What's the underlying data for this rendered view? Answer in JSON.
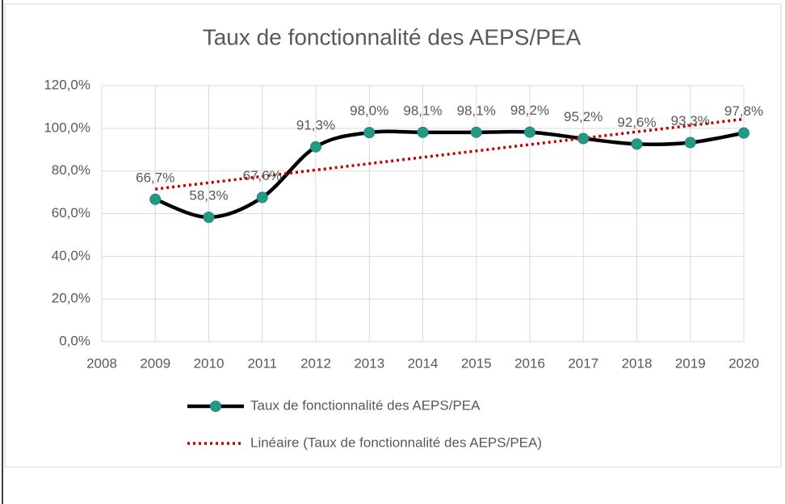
{
  "chart_data": {
    "type": "line",
    "title": "Taux de fonctionnalité des AEPS/PEA",
    "x": [
      2009,
      2010,
      2011,
      2012,
      2013,
      2014,
      2015,
      2016,
      2017,
      2018,
      2019,
      2020
    ],
    "series": [
      {
        "name": "Taux de fonctionnalité des AEPS/PEA",
        "color": "#000000",
        "marker_color": "#1f9e78",
        "smooth": true,
        "values": [
          66.7,
          58.3,
          67.6,
          91.3,
          98.0,
          98.1,
          98.1,
          98.2,
          95.2,
          92.6,
          93.3,
          97.8
        ],
        "value_labels": [
          "66,7%",
          "58,3%",
          "67,6%",
          "91,3%",
          "98,0%",
          "98,1%",
          "98,1%",
          "98,2%",
          "95,2%",
          "92,6%",
          "93,3%",
          "97,8%"
        ]
      },
      {
        "name": "Linéaire (Taux de fonctionnalité des AEPS/PEA)",
        "color": "#c00000",
        "dotted": true,
        "x": [
          2009,
          2020
        ],
        "values": [
          71.5,
          104.3
        ]
      }
    ],
    "xlim": [
      2008,
      2020
    ],
    "xticks": [
      2008,
      2009,
      2010,
      2011,
      2012,
      2013,
      2014,
      2015,
      2016,
      2017,
      2018,
      2019,
      2020
    ],
    "ylim": [
      0,
      120
    ],
    "yticks": [
      {
        "value": 0,
        "label": "0,0%"
      },
      {
        "value": 20,
        "label": "20,0%"
      },
      {
        "value": 40,
        "label": "40,0%"
      },
      {
        "value": 60,
        "label": "60,0%"
      },
      {
        "value": 80,
        "label": "80,0%"
      },
      {
        "value": 100,
        "label": "100,0%"
      },
      {
        "value": 120,
        "label": "120,0%"
      }
    ],
    "grid": true,
    "legend": "bottom"
  }
}
